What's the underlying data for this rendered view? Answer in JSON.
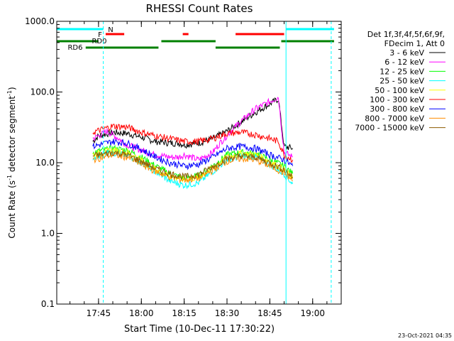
{
  "chart_data": {
    "type": "line",
    "title": "RHESSI Count Rates",
    "xlabel": "Start Time (10-Dec-11 17:30:22)",
    "ylabel_main": "Count Rate (s",
    "ylabel_sup": "-1",
    "ylabel_rest": " detector segment",
    "ylabel_sup2": "-1",
    "ylabel_end": ")",
    "y_scale": "log",
    "ylim": [
      0.1,
      1000
    ],
    "xlim": [
      "17:30:22",
      "19:10:00"
    ],
    "x_ticks": [
      "17:45",
      "18:00",
      "18:15",
      "18:30",
      "18:45",
      "19:00"
    ],
    "y_ticks": [
      "0.1",
      "1.0",
      "10.0",
      "100.0",
      "1000.0"
    ],
    "legend_header": [
      "Det 1f,3f,4f,5f,6f,9f,",
      "FDecim 1, Att 0"
    ],
    "legend_position": "right",
    "series": [
      {
        "name": "3 - 6 keV",
        "color": "#000000",
        "points": [
          [
            "17:43:00",
            20
          ],
          [
            "17:45:00",
            24
          ],
          [
            "17:50:00",
            27
          ],
          [
            "17:55:00",
            26
          ],
          [
            "18:00:00",
            23
          ],
          [
            "18:05:00",
            20
          ],
          [
            "18:10:00",
            19
          ],
          [
            "18:13:00",
            19
          ],
          [
            "18:15:00",
            18
          ],
          [
            "18:20:00",
            19
          ],
          [
            "18:25:00",
            22
          ],
          [
            "18:30:00",
            28
          ],
          [
            "18:35:00",
            38
          ],
          [
            "18:40:00",
            52
          ],
          [
            "18:45:00",
            68
          ],
          [
            "18:48:00",
            80
          ],
          [
            "18:50:00",
            17
          ],
          [
            "18:53:00",
            16
          ]
        ]
      },
      {
        "name": "6 - 12 keV",
        "color": "#ff00ff",
        "points": [
          [
            "17:43:00",
            22
          ],
          [
            "17:45:00",
            24
          ],
          [
            "17:48:00",
            28
          ],
          [
            "17:52:00",
            22
          ],
          [
            "17:55:00",
            18
          ],
          [
            "18:00:00",
            15
          ],
          [
            "18:05:00",
            13
          ],
          [
            "18:10:00",
            12
          ],
          [
            "18:13:00",
            12
          ],
          [
            "18:15:00",
            13
          ],
          [
            "18:20:00",
            11
          ],
          [
            "18:25:00",
            14
          ],
          [
            "18:28:00",
            20
          ],
          [
            "18:32:00",
            30
          ],
          [
            "18:36:00",
            42
          ],
          [
            "18:40:00",
            58
          ],
          [
            "18:44:00",
            70
          ],
          [
            "18:48:00",
            85
          ],
          [
            "18:50:00",
            14
          ],
          [
            "18:53:00",
            12
          ]
        ]
      },
      {
        "name": "12 - 25 keV",
        "color": "#00ff00",
        "points": [
          [
            "17:43:00",
            14
          ],
          [
            "17:50:00",
            16
          ],
          [
            "17:55:00",
            15
          ],
          [
            "18:00:00",
            12
          ],
          [
            "18:05:00",
            9
          ],
          [
            "18:10:00",
            7
          ],
          [
            "18:15:00",
            6
          ],
          [
            "18:20:00",
            6.5
          ],
          [
            "18:25:00",
            9
          ],
          [
            "18:30:00",
            13
          ],
          [
            "18:35:00",
            14
          ],
          [
            "18:40:00",
            13.5
          ],
          [
            "18:45:00",
            11
          ],
          [
            "18:50:00",
            9
          ],
          [
            "18:53:00",
            7
          ]
        ]
      },
      {
        "name": "25 - 50 keV",
        "color": "#00ffff",
        "points": [
          [
            "17:43:00",
            12
          ],
          [
            "17:50:00",
            14
          ],
          [
            "17:55:00",
            13
          ],
          [
            "18:00:00",
            10
          ],
          [
            "18:05:00",
            7.5
          ],
          [
            "18:10:00",
            5.5
          ],
          [
            "18:15:00",
            4.8
          ],
          [
            "18:20:00",
            5.2
          ],
          [
            "18:25:00",
            7.5
          ],
          [
            "18:30:00",
            11
          ],
          [
            "18:35:00",
            12.5
          ],
          [
            "18:40:00",
            12
          ],
          [
            "18:45:00",
            9.5
          ],
          [
            "18:50:00",
            7
          ],
          [
            "18:53:00",
            5
          ]
        ]
      },
      {
        "name": "50 - 100 keV",
        "color": "#ffff00",
        "points": [
          [
            "17:43:00",
            13
          ],
          [
            "17:50:00",
            15
          ],
          [
            "17:55:00",
            14
          ],
          [
            "18:00:00",
            11
          ],
          [
            "18:05:00",
            8
          ],
          [
            "18:10:00",
            6.5
          ],
          [
            "18:15:00",
            5.8
          ],
          [
            "18:20:00",
            6.2
          ],
          [
            "18:25:00",
            8.5
          ],
          [
            "18:30:00",
            12
          ],
          [
            "18:35:00",
            13.5
          ],
          [
            "18:40:00",
            13
          ],
          [
            "18:45:00",
            10.5
          ],
          [
            "18:50:00",
            8
          ],
          [
            "18:53:00",
            6
          ]
        ]
      },
      {
        "name": "100 - 300 keV",
        "color": "#ff0000",
        "points": [
          [
            "17:43:00",
            27
          ],
          [
            "17:50:00",
            33
          ],
          [
            "17:55:00",
            32
          ],
          [
            "18:00:00",
            27
          ],
          [
            "18:05:00",
            24
          ],
          [
            "18:10:00",
            22
          ],
          [
            "18:15:00",
            20
          ],
          [
            "18:20:00",
            20
          ],
          [
            "18:25:00",
            22
          ],
          [
            "18:30:00",
            26
          ],
          [
            "18:35:00",
            27
          ],
          [
            "18:40:00",
            25
          ],
          [
            "18:45:00",
            22
          ],
          [
            "18:48:00",
            20
          ],
          [
            "18:50:00",
            13
          ],
          [
            "18:53:00",
            11
          ]
        ]
      },
      {
        "name": "300 - 800 keV",
        "color": "#0000ff",
        "points": [
          [
            "17:43:00",
            17
          ],
          [
            "17:50:00",
            20
          ],
          [
            "17:55:00",
            19
          ],
          [
            "18:00:00",
            15.5
          ],
          [
            "18:05:00",
            12
          ],
          [
            "18:10:00",
            10
          ],
          [
            "18:15:00",
            9
          ],
          [
            "18:20:00",
            9.5
          ],
          [
            "18:25:00",
            12
          ],
          [
            "18:30:00",
            16
          ],
          [
            "18:35:00",
            17
          ],
          [
            "18:40:00",
            16
          ],
          [
            "18:45:00",
            13
          ],
          [
            "18:50:00",
            11
          ],
          [
            "18:53:00",
            9
          ]
        ]
      },
      {
        "name": "800 - 7000 keV",
        "color": "#ff8c00",
        "points": [
          [
            "17:43:00",
            11
          ],
          [
            "17:50:00",
            13
          ],
          [
            "17:55:00",
            12
          ],
          [
            "18:00:00",
            9.5
          ],
          [
            "18:05:00",
            7.5
          ],
          [
            "18:10:00",
            6.3
          ],
          [
            "18:15:00",
            5.7
          ],
          [
            "18:20:00",
            6
          ],
          [
            "18:25:00",
            7.8
          ],
          [
            "18:30:00",
            10.5
          ],
          [
            "18:35:00",
            11.5
          ],
          [
            "18:40:00",
            11
          ],
          [
            "18:45:00",
            9
          ],
          [
            "18:50:00",
            7.2
          ],
          [
            "18:53:00",
            5.5
          ]
        ]
      },
      {
        "name": "7000 - 15000 keV",
        "color": "#8b5a00",
        "points": [
          [
            "17:43:00",
            12.5
          ],
          [
            "17:50:00",
            14
          ],
          [
            "17:55:00",
            13
          ],
          [
            "18:00:00",
            10.5
          ],
          [
            "18:05:00",
            8.2
          ],
          [
            "18:10:00",
            7
          ],
          [
            "18:15:00",
            6.3
          ],
          [
            "18:20:00",
            6.8
          ],
          [
            "18:25:00",
            8.8
          ],
          [
            "18:30:00",
            11.5
          ],
          [
            "18:35:00",
            12.5
          ],
          [
            "18:40:00",
            12
          ],
          [
            "18:45:00",
            10
          ],
          [
            "18:50:00",
            8
          ],
          [
            "18:53:00",
            6.2
          ]
        ]
      }
    ],
    "vertical_lines": [
      {
        "x": "17:30:22",
        "style": "solid",
        "color": "#00ffff"
      },
      {
        "x": "17:46:40",
        "style": "dashed",
        "color": "#00ffff"
      },
      {
        "x": "18:50:40",
        "style": "solid",
        "color": "#00ffff"
      },
      {
        "x": "19:06:30",
        "style": "dashed",
        "color": "#00ffff"
      }
    ],
    "flag_bars": [
      {
        "label": "N",
        "color": "#00ffff",
        "row": 1,
        "segments": [
          [
            "17:30:22",
            "17:46:40"
          ],
          [
            "18:50:40",
            "19:07:30"
          ]
        ]
      },
      {
        "label": "F",
        "color": "#ff0000",
        "row": 2,
        "segments": [
          [
            "17:47:30",
            "17:54:00"
          ],
          [
            "18:14:30",
            "18:16:30"
          ],
          [
            "18:33:00",
            "18:50:00"
          ]
        ]
      },
      {
        "label": "RD0",
        "color": "#008000",
        "row": 3,
        "segments": [
          [
            "17:30:22",
            "17:45:00"
          ],
          [
            "18:07:00",
            "18:26:00"
          ],
          [
            "18:49:00",
            "19:07:30"
          ]
        ]
      },
      {
        "label": "RD6",
        "color": "#008000",
        "row": 4,
        "segments": [
          [
            "17:40:30",
            "18:06:00"
          ],
          [
            "18:26:00",
            "18:48:30"
          ]
        ]
      }
    ],
    "grid": false
  },
  "timestamp": "23-Oct-2021 04:35"
}
